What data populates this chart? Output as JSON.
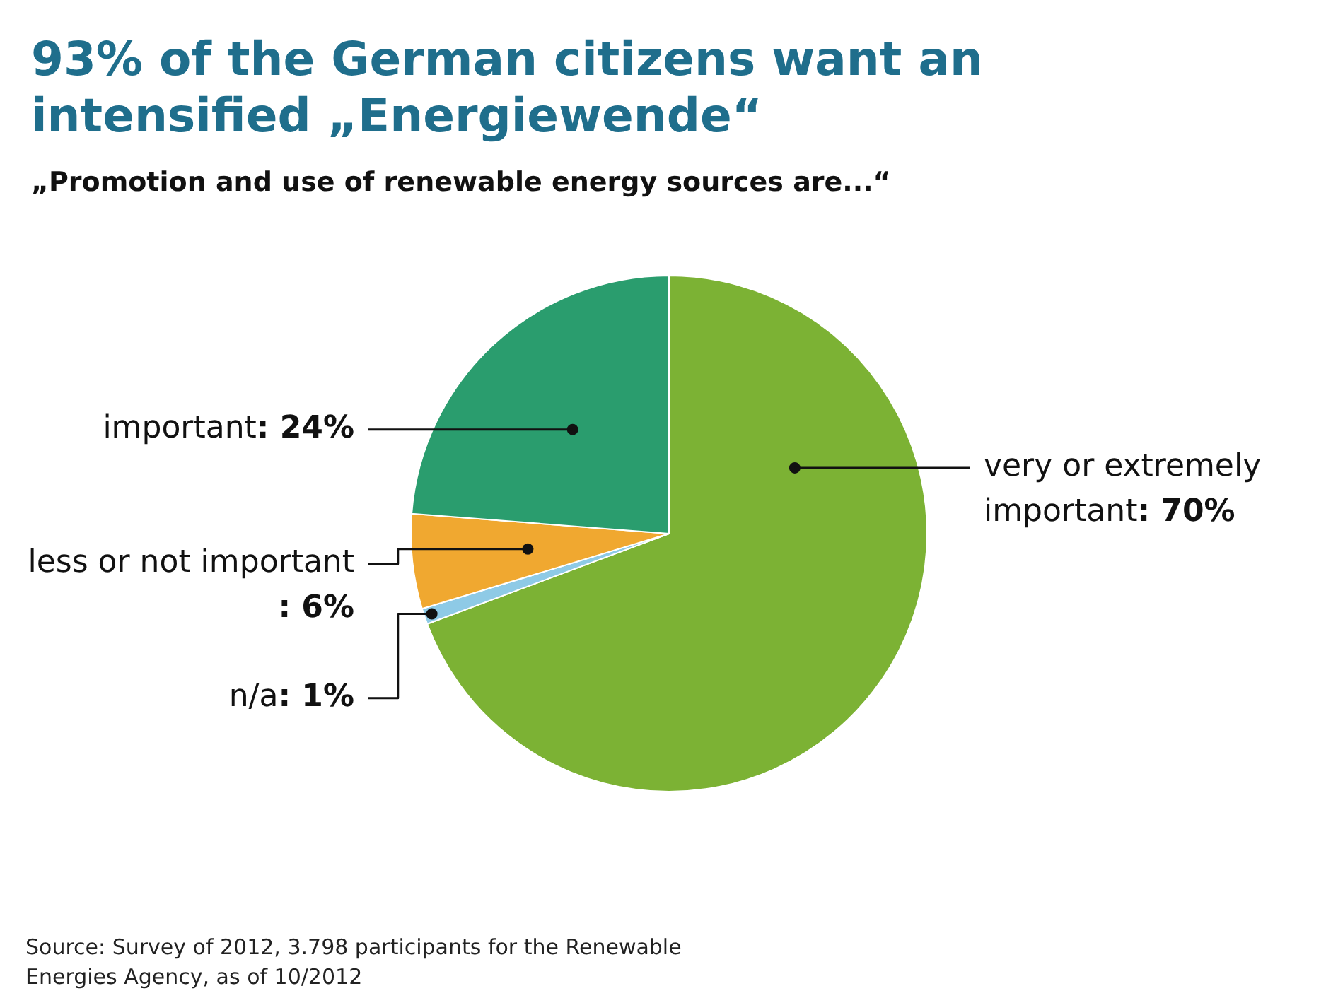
{
  "chart_data": {
    "type": "pie",
    "title": "93% of the German citizens want an intensified „Energiewende“",
    "subtitle": "„Promotion and use of renewable energy sources are...“",
    "categories": [
      "very or extremely important",
      "n/a",
      "less or not important",
      "important"
    ],
    "values": [
      70,
      1,
      6,
      24
    ],
    "value_labels": [
      ": 70%",
      ": 1%",
      ": 6%",
      ": 24%"
    ],
    "colors": [
      "#7cb234",
      "#8ecae6",
      "#f0a830",
      "#2a9d6e"
    ],
    "legend": false,
    "annotations": [
      "Source: Survey of 2012, 3.798 participants for the Renewable Energies Agency, as of 10/2012"
    ]
  }
}
